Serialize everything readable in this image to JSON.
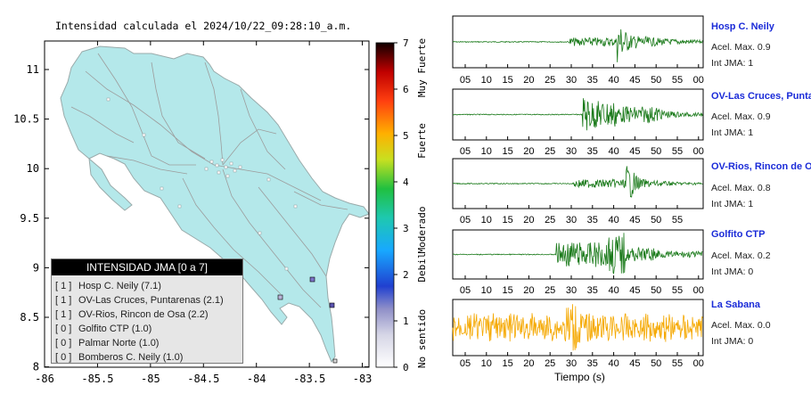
{
  "map": {
    "title": "Intensidad calculada el 2024/10/22_09:28:10_a.m.",
    "x_ticks": [
      "-86",
      "-85.5",
      "-85",
      "-84.5",
      "-84",
      "-83.5",
      "-83"
    ],
    "y_ticks": [
      "11",
      "10.5",
      "10",
      "9.5",
      "9",
      "8.5",
      "8"
    ]
  },
  "colorbar": {
    "ticks": [
      "7",
      "6",
      "5",
      "4",
      "3",
      "2",
      "1",
      "0"
    ],
    "labels": [
      "Muy Fuerte",
      "Fuerte",
      "Moderado",
      "Debil",
      "No sentido"
    ]
  },
  "legend": {
    "title": "INTENSIDAD JMA [0 a 7]",
    "items": [
      {
        "level": "[ 1 ]",
        "name": "Hosp C. Neily (7.1)"
      },
      {
        "level": "[ 1 ]",
        "name": "OV-Las Cruces, Puntarenas (2.1)"
      },
      {
        "level": "[ 1 ]",
        "name": "OV-Rios, Rincon de Osa (2.2)"
      },
      {
        "level": "[ 0 ]",
        "name": "Golfito CTP (1.0)"
      },
      {
        "level": "[ 0 ]",
        "name": "Palmar Norte (1.0)"
      },
      {
        "level": "[ 0 ]",
        "name": "Bomberos C. Neily (1.0)"
      }
    ]
  },
  "stations": [
    {
      "name": "Hosp C. Neily",
      "accel": "Acel. Max. 0.9",
      "jma": "Int JMA: 1",
      "color": "#1a7a1a",
      "ticks": [
        "05",
        "10",
        "15",
        "20",
        "25",
        "30",
        "35",
        "40",
        "45",
        "50",
        "55",
        "00"
      ]
    },
    {
      "name": "OV-Las Cruces, Puntar",
      "accel": "Acel. Max. 0.9",
      "jma": "Int JMA: 1",
      "color": "#1a7a1a",
      "ticks": [
        "05",
        "10",
        "15",
        "20",
        "25",
        "30",
        "35",
        "40",
        "45",
        "50",
        "55",
        "00"
      ]
    },
    {
      "name": "OV-Rios, Rincon de Os",
      "accel": "Acel. Max. 0.8",
      "jma": "Int JMA: 1",
      "color": "#1a7a1a",
      "ticks": [
        "05",
        "10",
        "15",
        "20",
        "25",
        "30",
        "35",
        "40",
        "45",
        "50",
        "55"
      ]
    },
    {
      "name": "Golfito CTP",
      "accel": "Acel. Max. 0.2",
      "jma": "Int JMA: 0",
      "color": "#1a7a1a",
      "ticks": [
        "05",
        "10",
        "15",
        "20",
        "25",
        "30",
        "35",
        "40",
        "45",
        "50",
        "55",
        "00"
      ]
    },
    {
      "name": "La Sabana",
      "accel": "Acel. Max. 0.0",
      "jma": "Int JMA: 0",
      "color": "#f5a800",
      "ticks": [
        "05",
        "10",
        "15",
        "20",
        "25",
        "30",
        "35",
        "40",
        "45",
        "50",
        "55",
        "00"
      ]
    }
  ],
  "xlabel": "Tiempo (s)"
}
